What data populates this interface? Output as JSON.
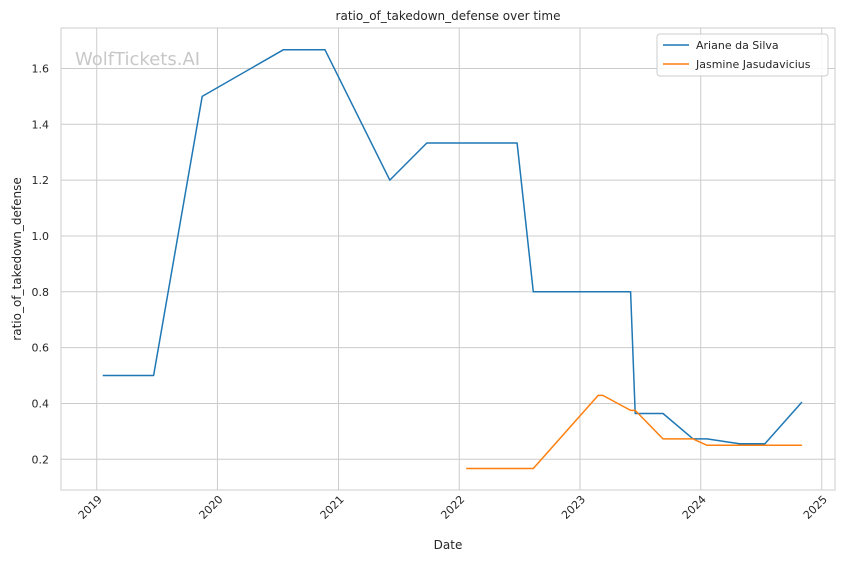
{
  "watermark": "WolfTickets.AI",
  "chart_data": {
    "type": "line",
    "title": "ratio_of_takedown_defense over time",
    "xlabel": "Date",
    "ylabel": "ratio_of_takedown_defense",
    "xlim": [
      "2018-09-15",
      "2025-02-10"
    ],
    "ylim": [
      0.09,
      1.745
    ],
    "x_ticks": [
      "2019",
      "2020",
      "2021",
      "2022",
      "2023",
      "2024",
      "2025"
    ],
    "y_ticks": [
      "0.2",
      "0.4",
      "0.6",
      "0.8",
      "1.0",
      "1.2",
      "1.4",
      "1.6"
    ],
    "grid": true,
    "legend_position": "top-right",
    "series": [
      {
        "name": "Ariane da Silva",
        "color": "#1f77b4",
        "points": [
          [
            "2019-01-19",
            0.5
          ],
          [
            "2019-06-22",
            0.5
          ],
          [
            "2019-11-16",
            1.5
          ],
          [
            "2020-07-18",
            1.667
          ],
          [
            "2020-11-21",
            1.667
          ],
          [
            "2021-06-05",
            1.2
          ],
          [
            "2021-09-25",
            1.333
          ],
          [
            "2022-06-25",
            1.333
          ],
          [
            "2022-08-13",
            0.8
          ],
          [
            "2023-06-03",
            0.8
          ],
          [
            "2023-06-17",
            0.364
          ],
          [
            "2023-09-09",
            0.364
          ],
          [
            "2023-12-09",
            0.273
          ],
          [
            "2024-01-20",
            0.273
          ],
          [
            "2024-04-27",
            0.256
          ],
          [
            "2024-07-13",
            0.256
          ],
          [
            "2024-11-02",
            0.405
          ]
        ]
      },
      {
        "name": "Jasmine Jasudavicius",
        "color": "#ff7f0e",
        "points": [
          [
            "2022-01-22",
            0.167
          ],
          [
            "2022-08-13",
            0.167
          ],
          [
            "2023-02-25",
            0.429
          ],
          [
            "2023-03-11",
            0.429
          ],
          [
            "2023-06-03",
            0.375
          ],
          [
            "2023-06-17",
            0.375
          ],
          [
            "2023-09-09",
            0.273
          ],
          [
            "2023-12-09",
            0.273
          ],
          [
            "2024-01-20",
            0.25
          ],
          [
            "2024-11-02",
            0.25
          ]
        ]
      }
    ]
  }
}
